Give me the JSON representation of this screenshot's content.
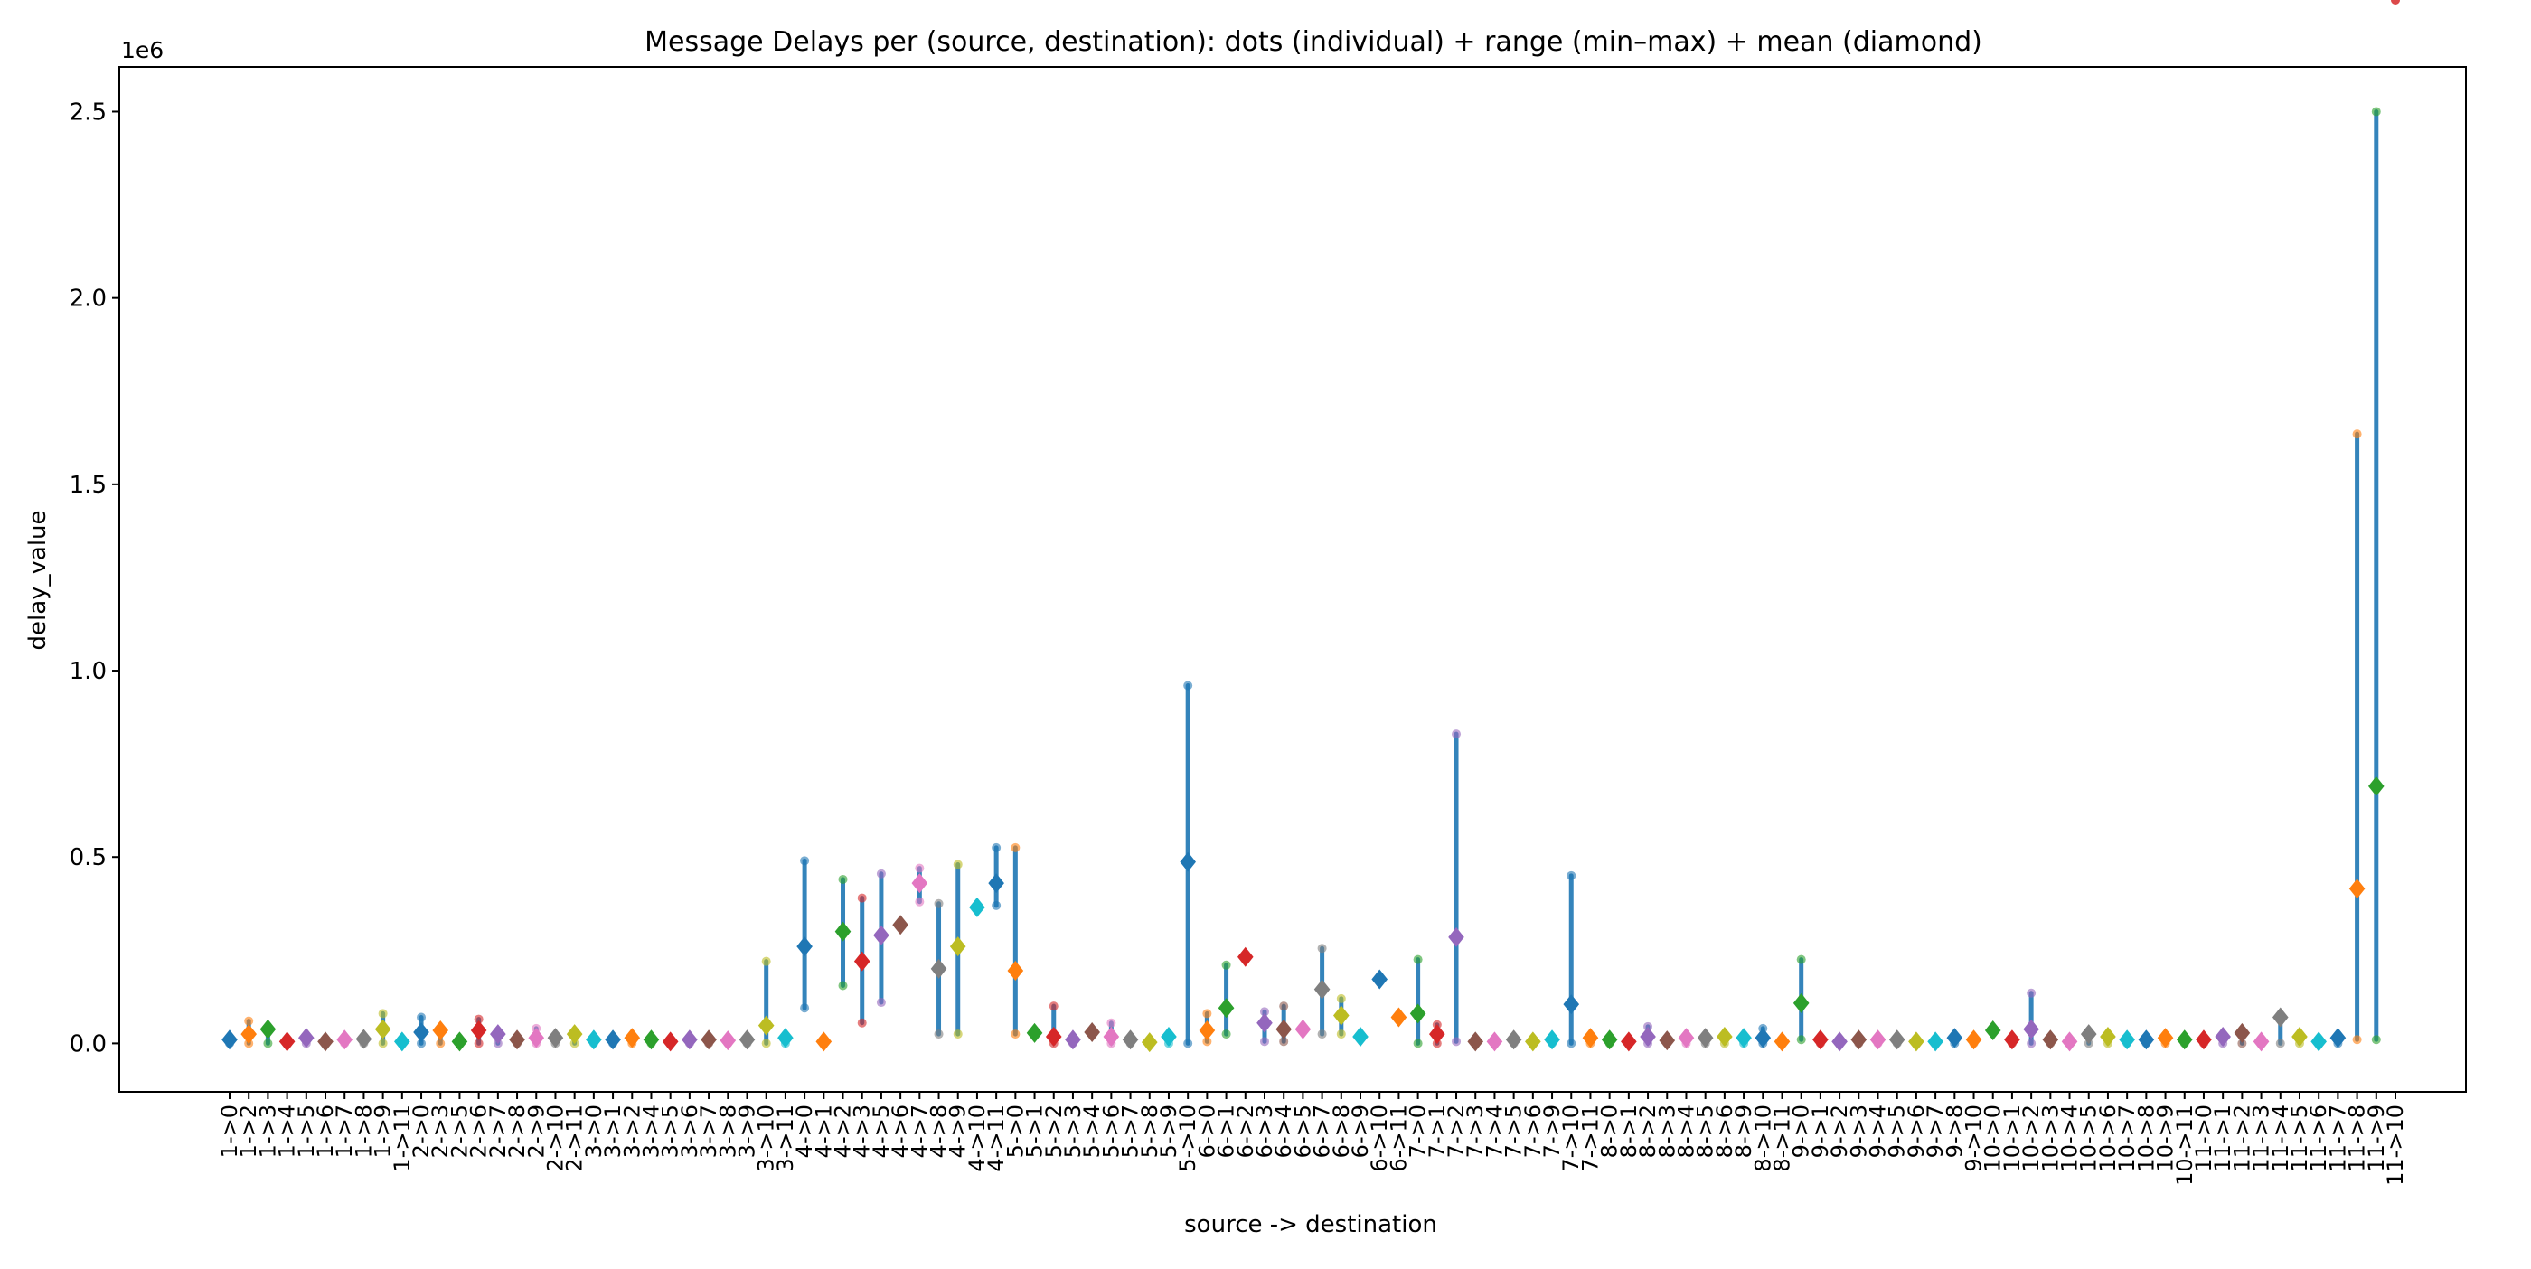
{
  "chart_data": {
    "type": "scatter",
    "title": "Message Delays per (source, destination): dots (individual) + range (min–max) + mean (diamond)",
    "xlabel": "source -> destination",
    "ylabel": "delay_value",
    "y_offset_text": "1e6",
    "ylim": [
      -130000,
      2620000
    ],
    "yticks": [
      0,
      500000,
      1000000,
      1500000,
      2000000,
      2500000
    ],
    "ytick_labels": [
      "0.0",
      "0.5",
      "1.0",
      "1.5",
      "2.0",
      "2.5"
    ],
    "grid": false,
    "range_color": "#1f77b4",
    "mean_colors": [
      "#1f77b4",
      "#ff7f0e",
      "#2ca02c",
      "#d62728",
      "#9467bd",
      "#8c564b",
      "#e377c2",
      "#7f7f7f",
      "#bcbd22",
      "#17becf"
    ],
    "categories": [
      "1->0",
      "1->2",
      "1->3",
      "1->4",
      "1->5",
      "1->6",
      "1->7",
      "1->8",
      "1->9",
      "1->11",
      "2->0",
      "2->3",
      "2->5",
      "2->6",
      "2->7",
      "2->8",
      "2->9",
      "2->10",
      "2->11",
      "3->0",
      "3->1",
      "3->2",
      "3->4",
      "3->5",
      "3->6",
      "3->7",
      "3->8",
      "3->9",
      "3->10",
      "3->11",
      "4->0",
      "4->1",
      "4->2",
      "4->3",
      "4->5",
      "4->6",
      "4->7",
      "4->8",
      "4->9",
      "4->10",
      "4->11",
      "5->0",
      "5->1",
      "5->2",
      "5->3",
      "5->4",
      "5->6",
      "5->7",
      "5->8",
      "5->9",
      "5->10",
      "6->0",
      "6->1",
      "6->2",
      "6->3",
      "6->4",
      "6->5",
      "6->7",
      "6->8",
      "6->9",
      "6->10",
      "6->11",
      "7->0",
      "7->1",
      "7->2",
      "7->3",
      "7->4",
      "7->5",
      "7->6",
      "7->9",
      "7->10",
      "7->11",
      "8->0",
      "8->1",
      "8->2",
      "8->3",
      "8->4",
      "8->5",
      "8->6",
      "8->9",
      "8->10",
      "8->11",
      "9->0",
      "9->1",
      "9->2",
      "9->3",
      "9->4",
      "9->5",
      "9->6",
      "9->7",
      "9->8",
      "9->10",
      "10->0",
      "10->1",
      "10->2",
      "10->3",
      "10->4",
      "10->5",
      "10->6",
      "10->7",
      "10->8",
      "10->9",
      "10->11",
      "11->0",
      "11->1",
      "11->2",
      "11->3",
      "11->4",
      "11->5",
      "11->6",
      "11->7",
      "11->8",
      "11->9",
      "11->10"
    ],
    "means": [
      10000,
      25000,
      38000,
      5000,
      15000,
      5000,
      10000,
      12000,
      38000,
      5000,
      30000,
      35000,
      5000,
      35000,
      25000,
      10000,
      15000,
      15000,
      25000,
      10000,
      10000,
      15000,
      10000,
      5000,
      10000,
      10000,
      8000,
      10000,
      48000,
      15000,
      260000,
      5000,
      300000,
      220000,
      290000,
      318000,
      430000,
      200000,
      260000,
      365000,
      430000,
      195000,
      28000,
      18000,
      10000,
      30000,
      18000,
      10000,
      3000,
      18000,
      487000,
      35000,
      95000,
      232000,
      55000,
      38000,
      38000,
      145000,
      75000,
      18000,
      172000,
      70000,
      80000,
      25000,
      285000,
      5000,
      5000,
      10000,
      5000,
      10000,
      105000,
      15000,
      10000,
      5000,
      18000,
      8000,
      15000,
      15000,
      18000,
      15000,
      15000,
      5000,
      108000,
      10000,
      5000,
      10000,
      10000,
      10000,
      5000,
      5000,
      15000,
      10000,
      35000,
      10000,
      38000,
      10000,
      5000,
      25000,
      18000,
      10000,
      10000,
      15000,
      10000,
      10000,
      18000,
      28000,
      5000,
      70000,
      18000,
      5000,
      15000,
      415000,
      690000
    ],
    "mins": [
      0,
      0,
      0,
      0,
      0,
      0,
      0,
      0,
      0,
      0,
      0,
      0,
      0,
      0,
      0,
      0,
      0,
      0,
      0,
      0,
      0,
      0,
      0,
      0,
      0,
      0,
      0,
      0,
      0,
      0,
      95000,
      0,
      155000,
      55000,
      110000,
      318000,
      380000,
      25000,
      25000,
      365000,
      370000,
      25000,
      28000,
      0,
      0,
      30000,
      0,
      0,
      0,
      0,
      0,
      5000,
      25000,
      232000,
      5000,
      5000,
      38000,
      25000,
      25000,
      18000,
      172000,
      70000,
      0,
      0,
      5000,
      0,
      0,
      0,
      0,
      0,
      0,
      0,
      0,
      0,
      0,
      0,
      0,
      0,
      0,
      0,
      0,
      0,
      10000,
      0,
      0,
      0,
      0,
      0,
      0,
      0,
      0,
      0,
      35000,
      0,
      0,
      0,
      0,
      0,
      0,
      0,
      0,
      0,
      0,
      0,
      0,
      0,
      0,
      0,
      0,
      0,
      0,
      10000,
      10000
    ],
    "maxs": [
      10000,
      60000,
      38000,
      5000,
      15000,
      5000,
      10000,
      12000,
      80000,
      5000,
      70000,
      35000,
      5000,
      65000,
      25000,
      10000,
      40000,
      15000,
      25000,
      10000,
      10000,
      15000,
      10000,
      5000,
      10000,
      10000,
      8000,
      10000,
      220000,
      15000,
      490000,
      5000,
      440000,
      390000,
      455000,
      318000,
      470000,
      375000,
      480000,
      365000,
      525000,
      525000,
      28000,
      100000,
      10000,
      30000,
      55000,
      10000,
      3000,
      18000,
      960000,
      80000,
      210000,
      232000,
      85000,
      100000,
      38000,
      255000,
      120000,
      18000,
      172000,
      70000,
      225000,
      50000,
      830000,
      5000,
      5000,
      10000,
      5000,
      10000,
      450000,
      15000,
      10000,
      5000,
      45000,
      8000,
      15000,
      15000,
      18000,
      15000,
      40000,
      5000,
      225000,
      10000,
      5000,
      10000,
      10000,
      10000,
      5000,
      5000,
      15000,
      10000,
      35000,
      10000,
      135000,
      10000,
      5000,
      25000,
      18000,
      10000,
      10000,
      15000,
      10000,
      10000,
      18000,
      28000,
      5000,
      70000,
      18000,
      5000,
      15000,
      1635000,
      2500000
    ]
  }
}
